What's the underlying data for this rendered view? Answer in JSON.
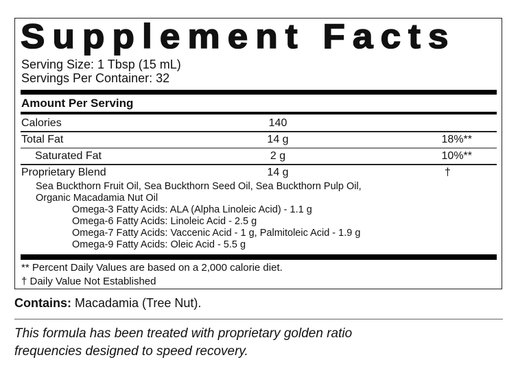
{
  "title": "Supplement Facts",
  "serving_size": "Serving Size: 1 Tbsp (15 mL)",
  "servings_per_container": "Servings Per Container: 32",
  "amount_per_serving": "Amount Per Serving",
  "rows": [
    {
      "name": "Calories",
      "amount": "140",
      "dv": ""
    },
    {
      "name": "Total Fat",
      "amount": "14 g",
      "dv": "18%**"
    },
    {
      "name": "Saturated Fat",
      "amount": "2 g",
      "dv": "10%**"
    },
    {
      "name": "Proprietary Blend",
      "amount": "14 g",
      "dv": "†"
    }
  ],
  "blend_ingredients": [
    "Sea Buckthorn Fruit Oil, Sea Buckthorn Seed Oil, Sea Buckthorn Pulp Oil,",
    "Organic Macadamia Nut Oil"
  ],
  "fatty_acids": [
    "Omega-3 Fatty Acids: ALA (Alpha Linoleic Acid) - 1.1 g",
    "Omega-6 Fatty Acids: Linoleic Acid - 2.5 g",
    "Omega-7 Fatty Acids: Vaccenic Acid - 1 g, Palmitoleic Acid - 1.9 g",
    "Omega-9 Fatty Acids: Oleic Acid - 5.5 g"
  ],
  "footnotes": [
    "** Percent Daily Values are based on a 2,000 calorie diet.",
    "† Daily Value Not Established"
  ],
  "contains_label": "Contains:",
  "contains_value": " Macadamia (Tree Nut).",
  "disclaimer": [
    "This formula has been treated with proprietary golden ratio",
    "frequencies designed to speed recovery."
  ]
}
